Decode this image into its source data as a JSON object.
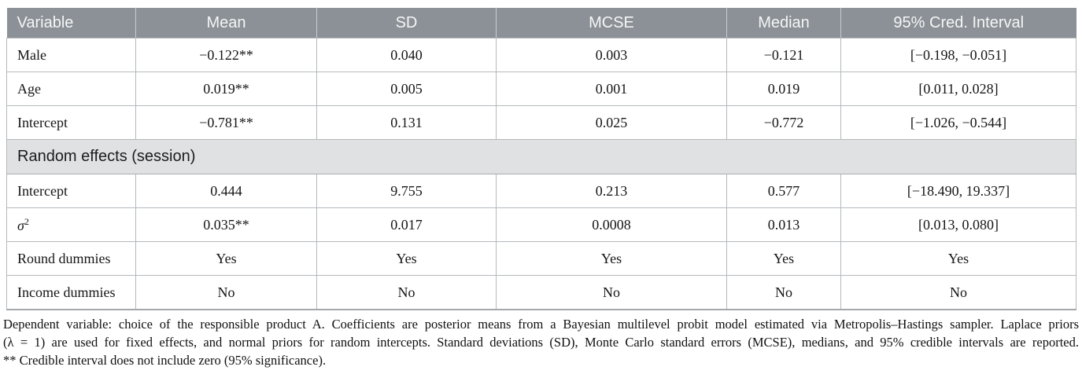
{
  "table": {
    "columns": [
      {
        "label": "Variable"
      },
      {
        "label": "Mean"
      },
      {
        "label": "SD"
      },
      {
        "label": "MCSE"
      },
      {
        "label": "Median"
      },
      {
        "label": "95% Cred. Interval"
      }
    ],
    "body": [
      {
        "variable": "Male",
        "values": [
          "−0.122**",
          "0.040",
          "0.003",
          "−0.121",
          "[−0.198, −0.051]"
        ]
      },
      {
        "variable": "Age",
        "values": [
          "0.019**",
          "0.005",
          "0.001",
          "0.019",
          "[0.011, 0.028]"
        ]
      },
      {
        "variable": "Intercept",
        "values": [
          "−0.781**",
          "0.131",
          "0.025",
          "−0.772",
          "[−1.026, −0.544]"
        ]
      },
      {
        "section": "Random effects (session)"
      },
      {
        "variable": "Intercept",
        "values": [
          "0.444",
          "9.755",
          "0.213",
          "0.577",
          "[−18.490, 19.337]"
        ]
      },
      {
        "variable": "σ",
        "variable_sup": "2",
        "italic": true,
        "values": [
          "0.035**",
          "0.017",
          "0.0008",
          "0.013",
          "[0.013, 0.080]"
        ]
      },
      {
        "variable": "Round dummies",
        "values": [
          "Yes",
          "Yes",
          "Yes",
          "Yes",
          "Yes"
        ]
      },
      {
        "variable": "Income dummies",
        "values": [
          "No",
          "No",
          "No",
          "No",
          "No"
        ]
      }
    ]
  },
  "footnotes": {
    "lines": [
      "Dependent variable: choice of the responsible product A. Coefficients are posterior means from a Bayesian multilevel probit model estimated via Metropolis–Hastings sampler. Laplace priors",
      "(λ = 1) are used for fixed effects, and normal priors for random intercepts. Standard deviations (SD), Monte Carlo standard errors (MCSE), medians, and 95% credible intervals are reported.",
      "** Credible interval does not include zero (95% significance)."
    ]
  },
  "colors": {
    "header_background": "#8b9196",
    "header_text": "#f5f6f6",
    "section_band_background": "#e0e1e2",
    "cell_border": "#b4b9bc",
    "body_text": "#161616"
  }
}
